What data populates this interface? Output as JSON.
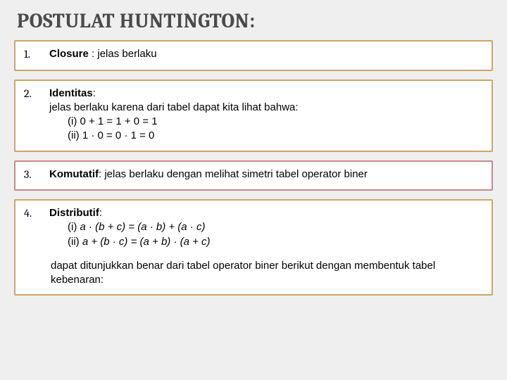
{
  "title": "POSTULAT HUNTINGTON:",
  "boxes": [
    {
      "num": "1.",
      "border_color": "#cda56a",
      "term": "Closure",
      "after_term": " :  jelas berlaku"
    },
    {
      "num": "2.",
      "border_color": "#cda56a",
      "term": "Identitas",
      "after_term": ":",
      "line2": "jelas berlaku karena dari tabel dapat kita lihat bahwa:",
      "eq1": "(i)  0 + 1 = 1 + 0 = 1",
      "eq2": "(ii) 1 · 0  = 0 · 1 = 0"
    },
    {
      "num": "3.",
      "border_color": "#c58a8a",
      "term": "Komutatif",
      "after_term": ":  jelas berlaku dengan melihat simetri tabel operator biner"
    },
    {
      "num": "4.",
      "border_color": "#cda56a",
      "term": "Distributif",
      "after_term": ":",
      "eq1_pre": "(i) ",
      "eq1_i": "a · (b + c) = (a · b) + (a · c)",
      "eq2_pre": "(ii) ",
      "eq2_i": "a + (b · c) = (a + b) · (a + c)",
      "trail": "dapat ditunjukkan benar dari tabel operator biner berikut dengan membentuk tabel kebenaran:"
    }
  ]
}
